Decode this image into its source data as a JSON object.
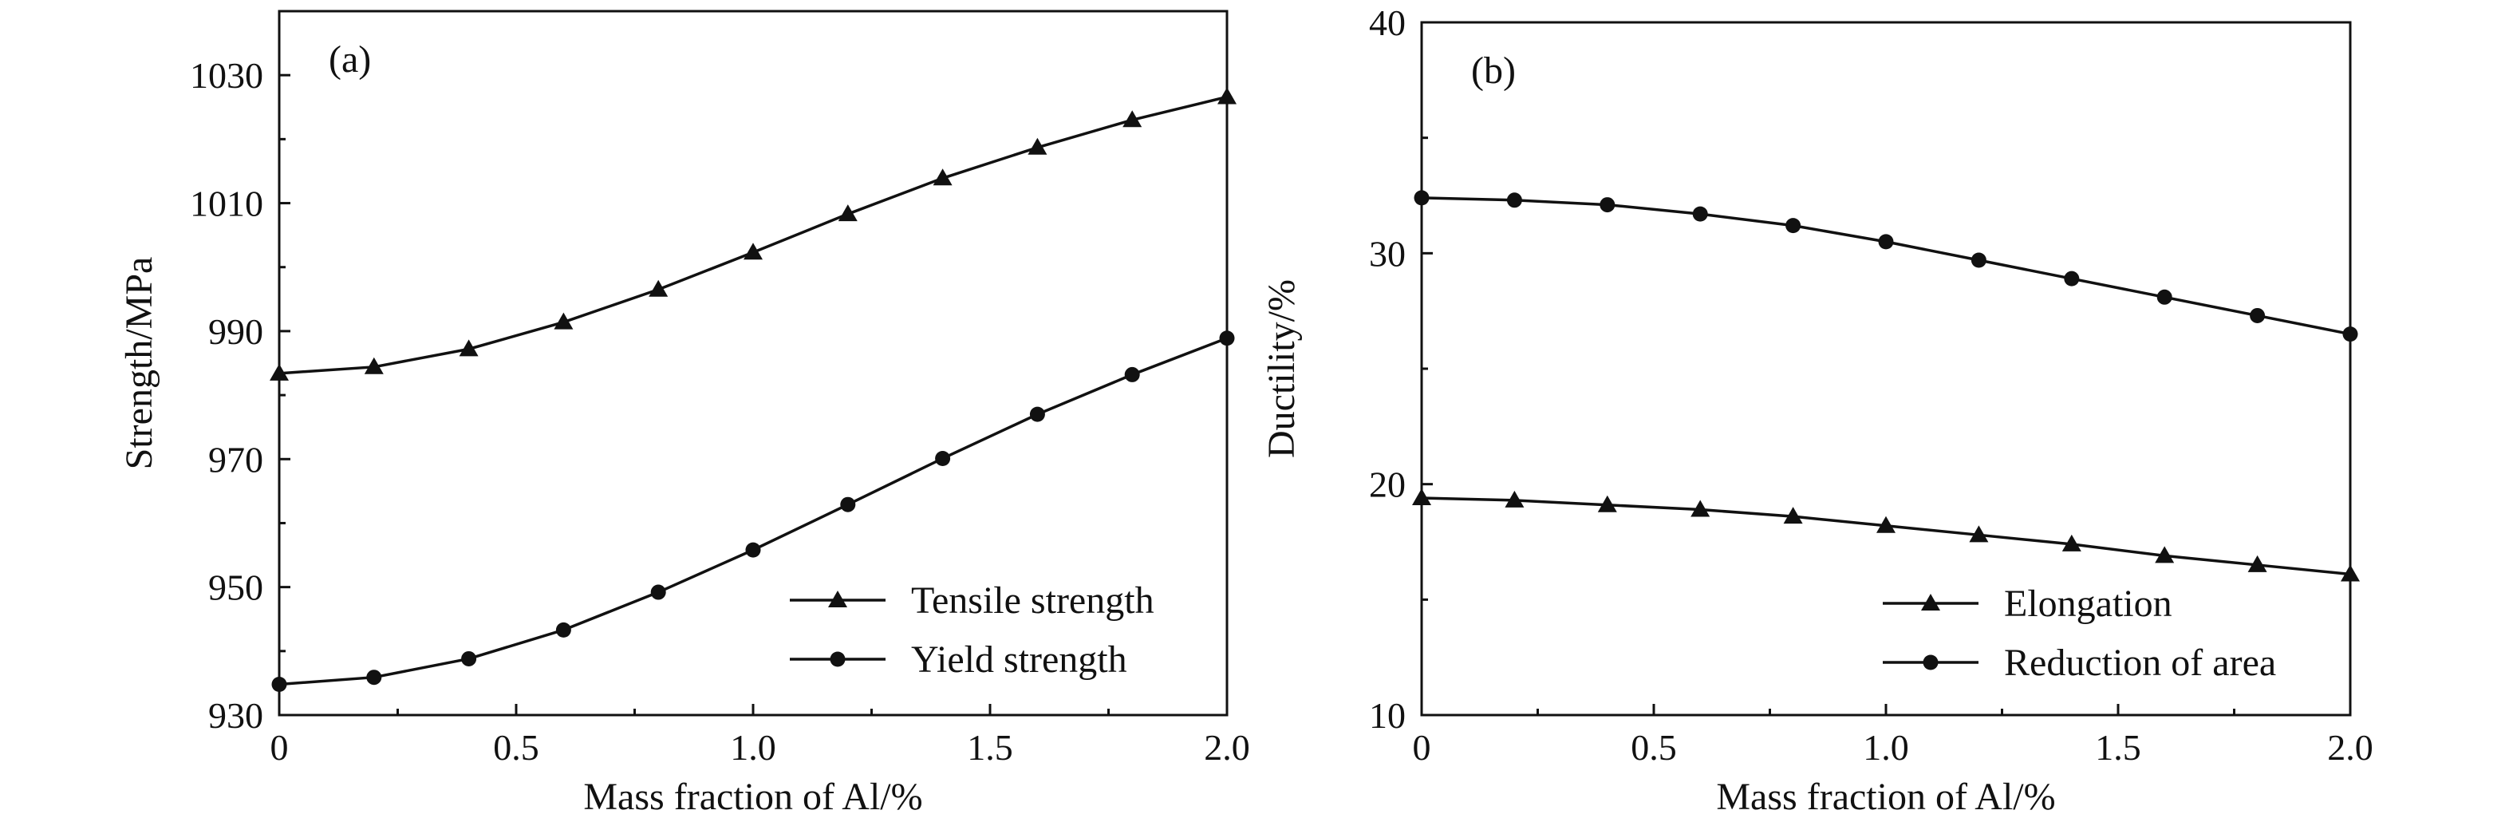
{
  "chart_data": [
    {
      "panel_label": "(a)",
      "type": "line",
      "xlabel": "Mass fraction of Al/%",
      "ylabel": "Strength/MPa",
      "xlim": [
        0,
        2.0
      ],
      "ylim": [
        930,
        1040
      ],
      "xticks": [
        0,
        0.5,
        1.0,
        1.5,
        2.0
      ],
      "xtick_labels": [
        "0",
        "0.5",
        "1.0",
        "1.5",
        "2.0"
      ],
      "yticks": [
        930,
        950,
        970,
        990,
        1010,
        1030
      ],
      "ytick_labels": [
        "930",
        "950",
        "970",
        "990",
        "1010",
        "1030"
      ],
      "x": [
        0,
        0.2,
        0.4,
        0.6,
        0.8,
        1.0,
        1.2,
        1.4,
        1.6,
        1.8,
        2.0
      ],
      "series": [
        {
          "name": "Tensile strength",
          "marker": "triangle",
          "values": [
            983.4,
            984.4,
            987.2,
            991.4,
            996.5,
            1002.3,
            1008.3,
            1013.9,
            1018.7,
            1023.0,
            1026.6
          ]
        },
        {
          "name": "Yield strength",
          "marker": "circle",
          "values": [
            934.8,
            935.9,
            938.8,
            943.3,
            949.2,
            955.8,
            962.9,
            970.1,
            977.0,
            983.2,
            988.9
          ]
        }
      ],
      "legend_position": "bottom-right",
      "grid": false
    },
    {
      "panel_label": "(b)",
      "type": "line",
      "xlabel": "Mass fraction of Al/%",
      "ylabel": "Ductility/%",
      "xlim": [
        0,
        2.0
      ],
      "ylim": [
        10,
        40
      ],
      "xticks": [
        0,
        0.5,
        1.0,
        1.5,
        2.0
      ],
      "xtick_labels": [
        "0",
        "0.5",
        "1.0",
        "1.5",
        "2.0"
      ],
      "yticks": [
        10,
        20,
        30,
        40
      ],
      "ytick_labels": [
        "10",
        "20",
        "30",
        "40"
      ],
      "x": [
        0,
        0.2,
        0.4,
        0.6,
        0.8,
        1.0,
        1.2,
        1.4,
        1.6,
        1.8,
        2.0
      ],
      "series": [
        {
          "name": "Elongation",
          "marker": "triangle",
          "values": [
            19.4,
            19.3,
            19.1,
            18.9,
            18.6,
            18.2,
            17.8,
            17.4,
            16.9,
            16.5,
            16.1
          ]
        },
        {
          "name": "Reduction of area",
          "marker": "circle",
          "values": [
            32.4,
            32.3,
            32.1,
            31.7,
            31.2,
            30.5,
            29.7,
            28.9,
            28.1,
            27.3,
            26.5
          ]
        }
      ],
      "legend_position": "bottom-right",
      "grid": false
    }
  ]
}
